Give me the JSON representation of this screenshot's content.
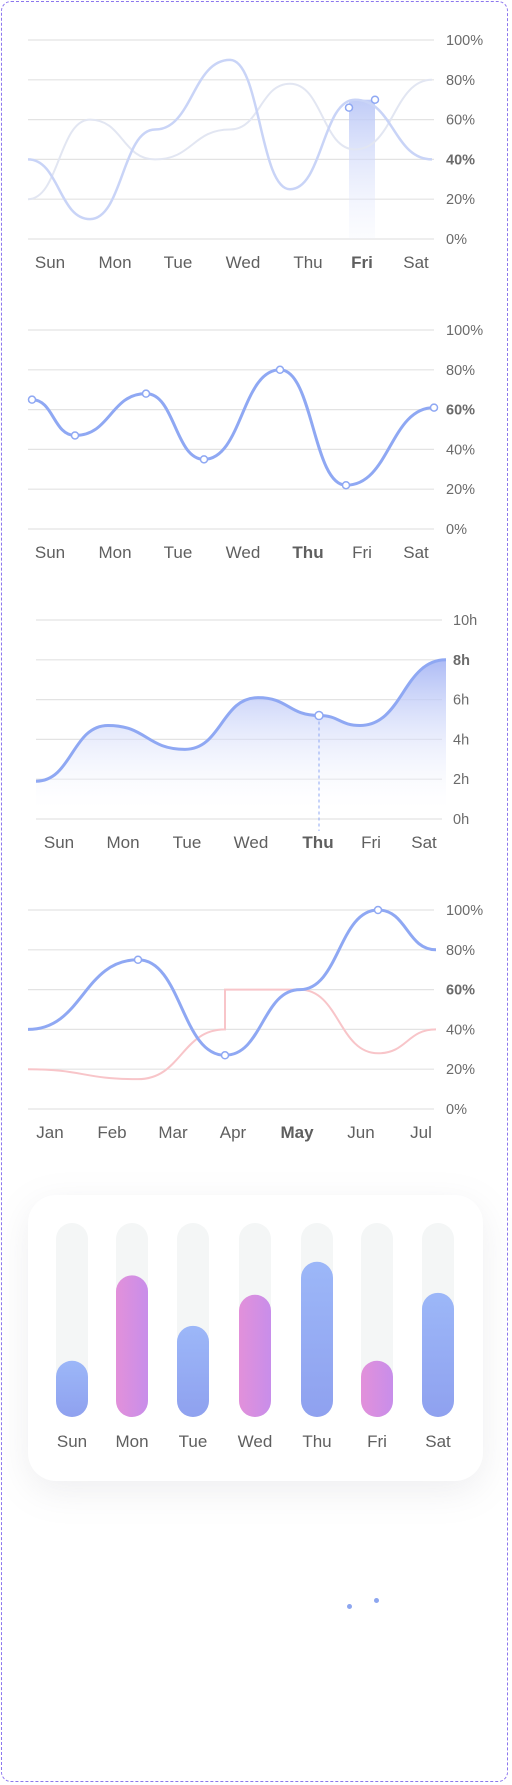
{
  "colors": {
    "blue": "#8fa8f3",
    "blue_light": "#c7d2f8",
    "pink": "#dd8ee0",
    "salmon": "#f8c5c9",
    "gray_track": "#f4f6f6"
  },
  "chart_data": [
    {
      "type": "line",
      "categories": [
        "Sun",
        "Mon",
        "Tue",
        "Wed",
        "Thu",
        "Fri",
        "Sat"
      ],
      "highlight_category": "Fri",
      "ylim": [
        0,
        100
      ],
      "yticks": [
        "100%",
        "80%",
        "60%",
        "40%",
        "20%",
        "0%"
      ],
      "highlight_tick": "40%",
      "grid": true,
      "series": [
        {
          "values": [
            40,
            10,
            55,
            90,
            25,
            70,
            40
          ]
        },
        {
          "values": [
            20,
            60,
            40,
            55,
            78,
            45,
            80
          ]
        }
      ]
    },
    {
      "type": "line",
      "categories": [
        "Sun",
        "Mon",
        "Tue",
        "Wed",
        "Thu",
        "Fri",
        "Sat"
      ],
      "highlight_category": "Thu",
      "ylim": [
        0,
        100
      ],
      "yticks": [
        "100%",
        "80%",
        "60%",
        "40%",
        "20%",
        "0%"
      ],
      "highlight_tick": "60%",
      "grid": true,
      "series": [
        {
          "values": [
            65,
            47,
            68,
            35,
            80,
            22,
            61
          ]
        }
      ]
    },
    {
      "type": "area",
      "categories": [
        "Sun",
        "Mon",
        "Tue",
        "Wed",
        "Thu",
        "Fri",
        "Sat"
      ],
      "highlight_category": "Thu",
      "ylim": [
        0,
        10
      ],
      "yticks": [
        "10h",
        "8h",
        "6h",
        "4h",
        "2h",
        "0h"
      ],
      "highlight_tick": "8h",
      "grid": true,
      "series": [
        {
          "values": [
            1.9,
            4.7,
            3.5,
            6.1,
            5.2,
            4.7,
            8
          ]
        }
      ]
    },
    {
      "type": "line",
      "categories": [
        "Jan",
        "Feb",
        "Mar",
        "Apr",
        "May",
        "Jun",
        "Jul"
      ],
      "highlight_category": "May",
      "ylim": [
        0,
        100
      ],
      "yticks": [
        "100%",
        "80%",
        "60%",
        "40%",
        "20%",
        "0%"
      ],
      "highlight_tick": "60%",
      "grid": true,
      "series": [
        {
          "values": [
            40,
            75,
            27,
            27,
            60,
            100,
            80
          ]
        },
        {
          "values": [
            20,
            15,
            40,
            60,
            60,
            28,
            40
          ]
        }
      ]
    },
    {
      "type": "bar",
      "categories": [
        "Sun",
        "Mon",
        "Tue",
        "Wed",
        "Thu",
        "Fri",
        "Sat"
      ],
      "ylim": [
        0,
        100
      ],
      "values": [
        29,
        73,
        47,
        63,
        80,
        29,
        64
      ],
      "bar_styles": [
        "blue",
        "pink",
        "blue",
        "pink",
        "blue",
        "pink",
        "blue"
      ]
    }
  ]
}
